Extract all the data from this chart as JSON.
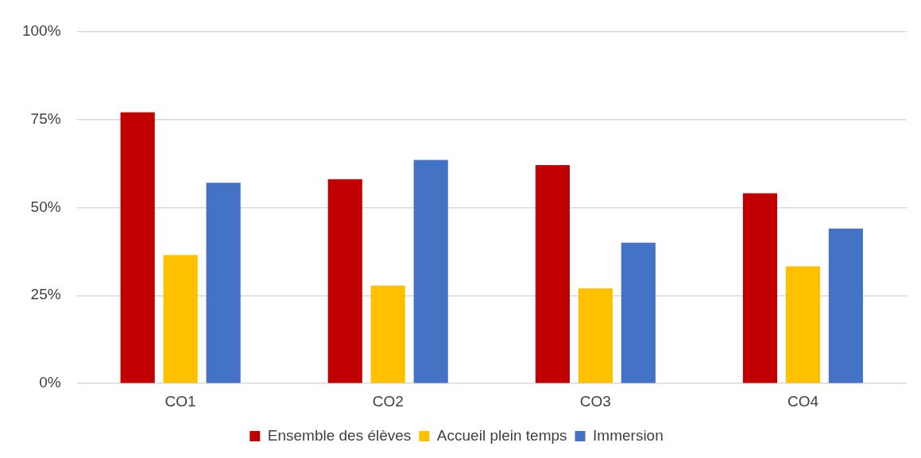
{
  "chart_data": {
    "type": "bar",
    "categories": [
      "CO1",
      "CO2",
      "CO3",
      "CO4"
    ],
    "series": [
      {
        "name": "Ensemble des élèves",
        "color": "#c00000",
        "values": [
          77,
          58,
          62,
          54
        ]
      },
      {
        "name": "Accueil plein temps",
        "color": "#ffc000",
        "values": [
          36.5,
          27.8,
          27,
          33.3
        ]
      },
      {
        "name": "Immersion",
        "color": "#4472c4",
        "values": [
          57,
          63.5,
          40,
          44
        ]
      }
    ],
    "ylim": [
      0,
      100
    ],
    "yticks": [
      {
        "value": 0,
        "label": "0%"
      },
      {
        "value": 25,
        "label": "25%"
      },
      {
        "value": 50,
        "label": "50%"
      },
      {
        "value": 75,
        "label": "75%"
      },
      {
        "value": 100,
        "label": "100%"
      }
    ],
    "grid": "y",
    "legend": "bottom"
  }
}
